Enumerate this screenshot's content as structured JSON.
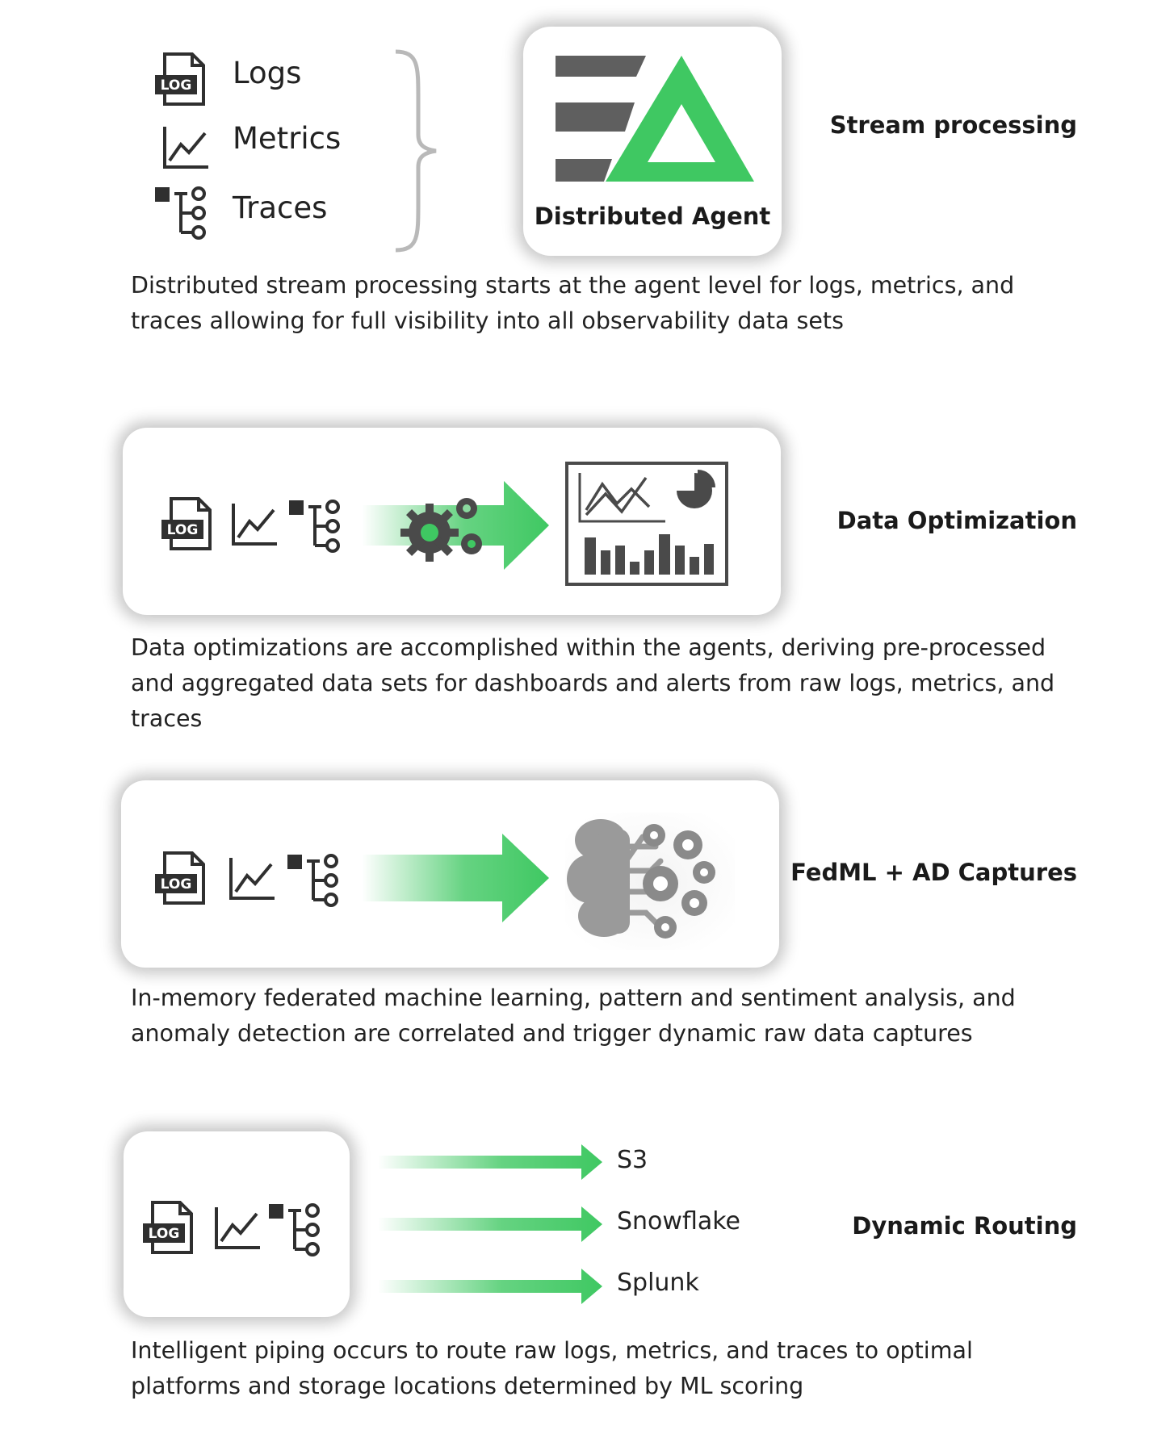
{
  "sections": [
    {
      "heading": "Stream processing",
      "legend": [
        "Logs",
        "Metrics",
        "Traces"
      ],
      "card_label": "Distributed Agent",
      "description": "Distributed stream processing starts at the agent level for logs, metrics, and traces allowing for full visibility into all observability data sets"
    },
    {
      "heading": "Data Optimization",
      "description": "Data optimizations are accomplished within the agents, deriving pre-processed and aggregated data sets for dashboards and alerts from raw logs, metrics, and traces"
    },
    {
      "heading": "FedML + AD Captures",
      "description": "In-memory federated machine learning, pattern and sentiment analysis, and anomaly detection are correlated and trigger dynamic raw data captures"
    },
    {
      "heading": "Dynamic Routing",
      "destinations": [
        "S3",
        "Snowflake",
        "Splunk"
      ],
      "description": "Intelligent piping occurs to route raw logs, metrics, and traces to optimal platforms and storage locations determined by ML scoring"
    }
  ],
  "icons": {
    "log_badge": "LOG"
  },
  "colors": {
    "accent_green": "#3fc862",
    "dark_gray": "#5f5f5f",
    "icon_dark": "#2f2f2f"
  }
}
